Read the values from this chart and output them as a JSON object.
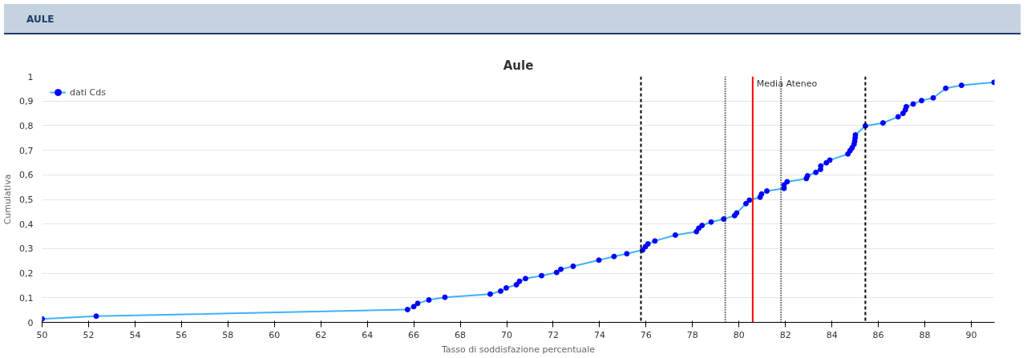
{
  "chart_data": {
    "type": "line",
    "title": "Aule",
    "xlabel": "Tasso di soddisfazione percentuale",
    "ylabel": "Cumulativa",
    "annotations": [
      "AULE"
    ],
    "xlim": [
      50,
      91
    ],
    "ylim": [
      0,
      1
    ],
    "xticks": [
      50,
      52,
      54,
      56,
      58,
      60,
      62,
      64,
      66,
      68,
      70,
      72,
      74,
      76,
      78,
      80,
      82,
      84,
      86,
      88,
      90
    ],
    "yticks": [
      {
        "value": 0,
        "label": "0"
      },
      {
        "value": 0.1,
        "label": "0,1"
      },
      {
        "value": 0.2,
        "label": "0,2"
      },
      {
        "value": 0.3,
        "label": "0,3"
      },
      {
        "value": 0.4,
        "label": "0,4"
      },
      {
        "value": 0.5,
        "label": "0,5"
      },
      {
        "value": 0.6,
        "label": "0,6"
      },
      {
        "value": 0.7,
        "label": "0,7"
      },
      {
        "value": 0.8,
        "label": "0,8"
      },
      {
        "value": 0.9,
        "label": "0,9"
      },
      {
        "value": 1,
        "label": "1"
      }
    ],
    "grid": "y",
    "legend": "top left",
    "marker": "circle",
    "line_style": "solid",
    "series": [
      {
        "name": "dati Cds",
        "color": "#3fb1f7",
        "x": [
          50.0,
          52.33,
          65.73,
          66.0,
          66.17,
          66.65,
          67.34,
          69.29,
          69.74,
          69.98,
          70.42,
          70.55,
          70.81,
          71.5,
          72.15,
          72.33,
          72.86,
          73.97,
          74.62,
          75.17,
          75.85,
          75.97,
          76.08,
          76.38,
          77.26,
          78.17,
          78.27,
          78.41,
          78.8,
          79.34,
          79.81,
          79.9,
          80.3,
          80.45,
          80.91,
          80.97,
          81.2,
          81.94,
          81.94,
          82.07,
          82.9,
          82.95,
          83.31,
          83.51,
          83.52,
          83.76,
          83.91,
          84.69,
          84.78,
          84.87,
          84.95,
          84.98,
          85.0,
          85.01,
          85.44,
          86.2,
          86.85,
          87.06,
          87.16,
          87.2,
          87.5,
          87.86,
          88.36,
          88.9,
          89.58,
          90.98
        ],
        "values": [
          0.014,
          0.025,
          0.052,
          0.064,
          0.077,
          0.091,
          0.102,
          0.115,
          0.127,
          0.14,
          0.153,
          0.167,
          0.178,
          0.19,
          0.203,
          0.216,
          0.228,
          0.253,
          0.268,
          0.279,
          0.294,
          0.308,
          0.319,
          0.331,
          0.355,
          0.369,
          0.383,
          0.394,
          0.408,
          0.42,
          0.434,
          0.445,
          0.483,
          0.497,
          0.509,
          0.522,
          0.534,
          0.545,
          0.559,
          0.572,
          0.585,
          0.596,
          0.61,
          0.622,
          0.636,
          0.649,
          0.66,
          0.685,
          0.698,
          0.71,
          0.724,
          0.736,
          0.75,
          0.762,
          0.799,
          0.811,
          0.836,
          0.85,
          0.864,
          0.877,
          0.888,
          0.902,
          0.913,
          0.952,
          0.964,
          0.976
        ],
        "colors": [
          "#0000ff",
          "#0000ff",
          "#0000ff",
          "#0000ff",
          "#0000ff",
          "#0000ff",
          "#0000ff",
          "#0000ff",
          "#0000ff",
          "#0000ff",
          "#0000ff",
          "#0000ff",
          "#0000ff",
          "#0000ff",
          "#0000ff",
          "#0000ff",
          "#0000ff",
          "#0000ff",
          "#0000ff",
          "#0000ff",
          "#0000ff",
          "#0000ff",
          "#0000ff",
          "#0000ff",
          "#0000ff",
          "#0000ff",
          "#0000ff",
          "#0000ff",
          "#0000ff",
          "#0000ff",
          "#0000ff",
          "#0000ff",
          "#0000ff",
          "#0000ff",
          "#0000ff",
          "#0000ff",
          "#0000ff",
          "#0000ff",
          "#0000ff",
          "#0000ff",
          "#0000ff",
          "#0000ff",
          "#0000ff",
          "#0000ff",
          "#0000ff",
          "#0000ff",
          "#0000ff",
          "#0000ff",
          "#0000ff",
          "#0000ff",
          "#0000ff",
          "#0000ff",
          "#0000ff",
          "#0000ff",
          "#0000ff",
          "#0000ff",
          "#0000ff",
          "#0000ff",
          "#0000ff",
          "#0000ff",
          "#0000ff",
          "#0000ff",
          "#0000ff",
          "#0000ff",
          "#0000ff",
          "#0000ff"
        ]
      }
    ],
    "ref_lines": [
      {
        "axis": "x",
        "value": 75.78,
        "color": "#000000",
        "line_style": "dashed"
      },
      {
        "axis": "x",
        "value": 79.41,
        "color": "#000000",
        "line_style": "dotted"
      },
      {
        "axis": "x",
        "value": 80.59,
        "label": "Media Ateneo",
        "color": "#ff0000",
        "line_style": "solid"
      },
      {
        "axis": "x",
        "value": 81.81,
        "color": "#000000",
        "line_style": "dotted"
      },
      {
        "axis": "x",
        "value": 85.44,
        "color": "#000000",
        "line_style": "dashed"
      }
    ]
  }
}
